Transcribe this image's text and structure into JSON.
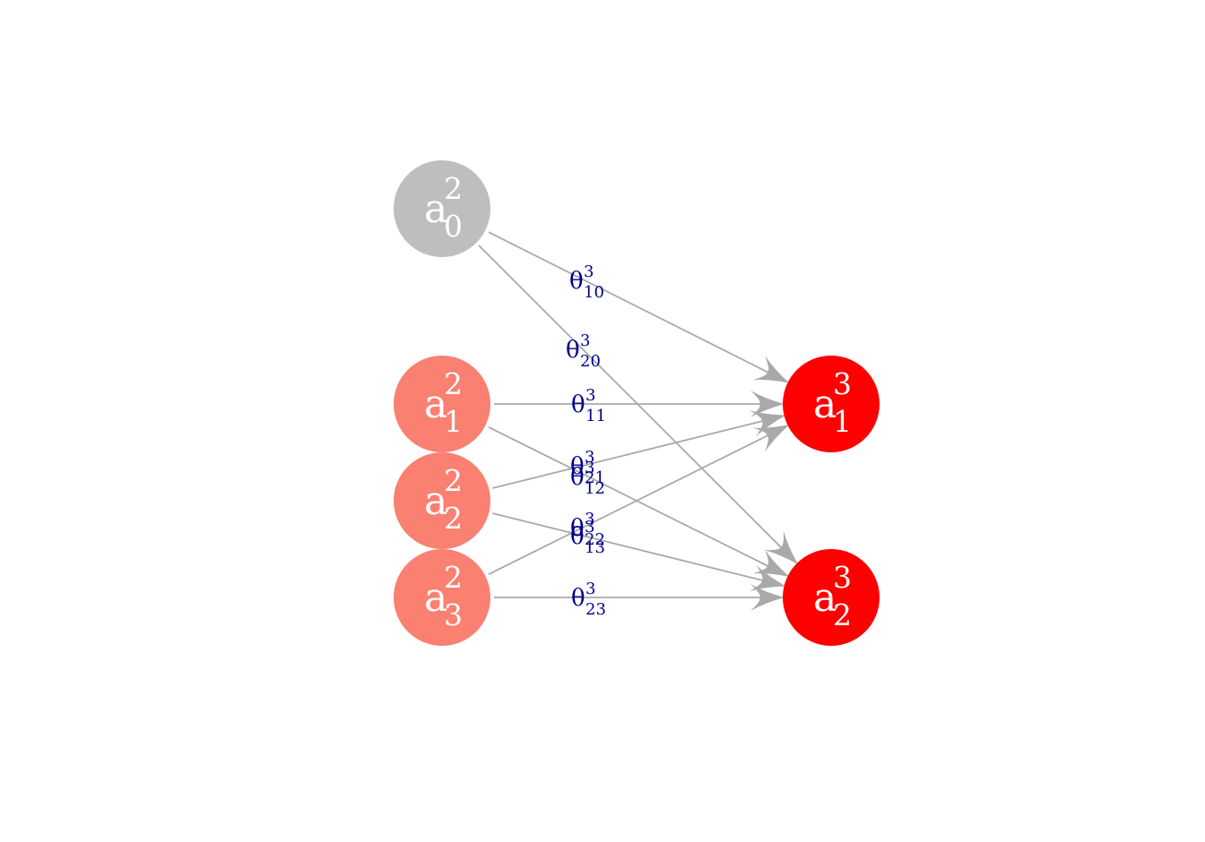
{
  "colors": {
    "bias_node": "#bebebe",
    "hidden_node": "#fa8072",
    "output_node": "#ff0000",
    "edge": "#a9a9a9",
    "edge_label": "#00008b",
    "node_text": "#ffffff"
  },
  "nodes": [
    {
      "id": "a0",
      "base": "a",
      "sub": "0",
      "sup": "2",
      "kind": "bias_node"
    },
    {
      "id": "a1",
      "base": "a",
      "sub": "1",
      "sup": "2",
      "kind": "hidden_node"
    },
    {
      "id": "a2",
      "base": "a",
      "sub": "2",
      "sup": "2",
      "kind": "hidden_node"
    },
    {
      "id": "a3",
      "base": "a",
      "sub": "3",
      "sup": "2",
      "kind": "hidden_node"
    },
    {
      "id": "b1",
      "base": "a",
      "sub": "1",
      "sup": "3",
      "kind": "output_node"
    },
    {
      "id": "b2",
      "base": "a",
      "sub": "2",
      "sup": "3",
      "kind": "output_node"
    }
  ],
  "edges": [
    {
      "from": "a0",
      "to": "b1",
      "base": "θ",
      "sub": "10",
      "sup": "3"
    },
    {
      "from": "a0",
      "to": "b2",
      "base": "θ",
      "sub": "20",
      "sup": "3"
    },
    {
      "from": "a1",
      "to": "b1",
      "base": "θ",
      "sub": "11",
      "sup": "3"
    },
    {
      "from": "a1",
      "to": "b2",
      "base": "θ",
      "sub": "21",
      "sup": "3"
    },
    {
      "from": "a2",
      "to": "b1",
      "base": "θ",
      "sub": "12",
      "sup": "3"
    },
    {
      "from": "a2",
      "to": "b2",
      "base": "θ",
      "sub": "22",
      "sup": "3"
    },
    {
      "from": "a3",
      "to": "b1",
      "base": "θ",
      "sub": "13",
      "sup": "3"
    },
    {
      "from": "a3",
      "to": "b2",
      "base": "θ",
      "sub": "23",
      "sup": "3"
    }
  ]
}
